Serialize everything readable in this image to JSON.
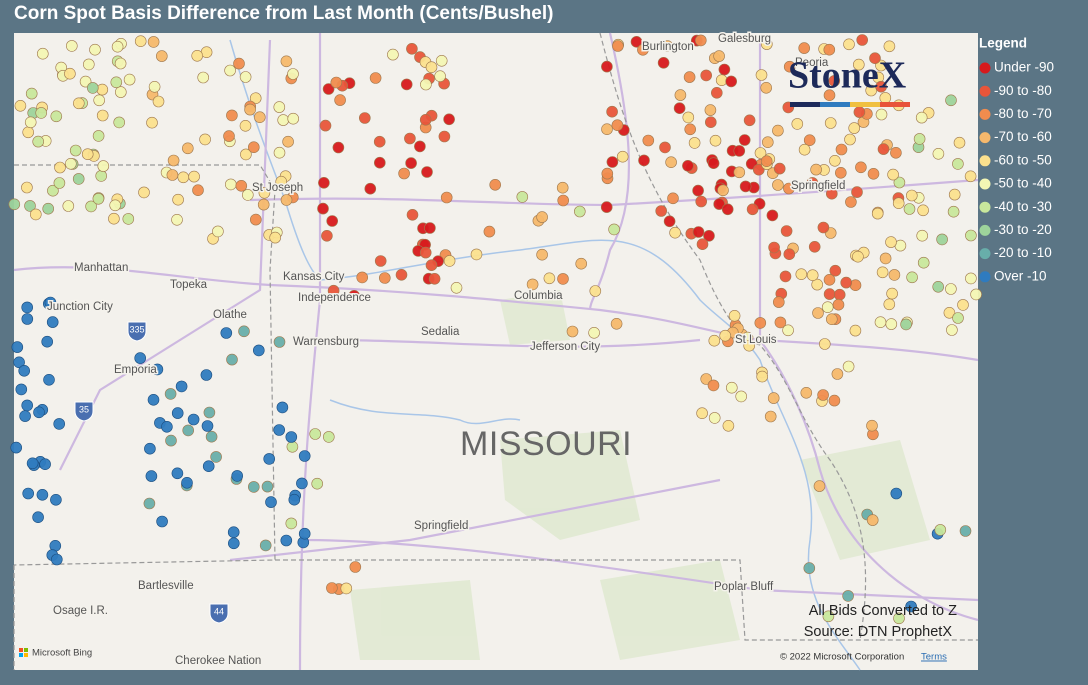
{
  "title": "Corn Spot Basis Difference from Last Month (Cents/Bushel)",
  "legend": {
    "title": "Legend",
    "items": [
      {
        "label": "Under -90",
        "color": "#d7191c"
      },
      {
        "label": "-90 to -80",
        "color": "#e8553a"
      },
      {
        "label": "-80 to -70",
        "color": "#f08c4e"
      },
      {
        "label": "-70 to -60",
        "color": "#f6b86c"
      },
      {
        "label": "-60 to -50",
        "color": "#fbe08e"
      },
      {
        "label": "-50 to -40",
        "color": "#f3f6b4"
      },
      {
        "label": "-40 to -30",
        "color": "#c8e79c"
      },
      {
        "label": "-30 to -20",
        "color": "#9dd39b"
      },
      {
        "label": "-20 to -10",
        "color": "#68aeaa"
      },
      {
        "label": "Over -10",
        "color": "#2f7bbf"
      }
    ]
  },
  "map": {
    "state_label": "MISSOURI",
    "cities": [
      "St Joseph",
      "Kansas City",
      "Independence",
      "Topeka",
      "Manhattan",
      "Junction City",
      "Olathe",
      "Emporia",
      "Warrensburg",
      "Sedalia",
      "Columbia",
      "Jefferson City",
      "St Louis",
      "Springfield",
      "Springfield",
      "Bartlesville",
      "Osage I.R.",
      "Cherokee Nation",
      "Poplar Bluff",
      "Burlington",
      "Galesburg",
      "Peoria"
    ],
    "highways": [
      "35",
      "44",
      "335"
    ]
  },
  "logo": "StoneX",
  "notes": [
    "All Bids Converted to Z",
    "Source: DTN ProphetX"
  ],
  "copyright": "© 2022 Microsoft Corporation",
  "terms": "Terms",
  "bing": "Microsoft Bing"
}
